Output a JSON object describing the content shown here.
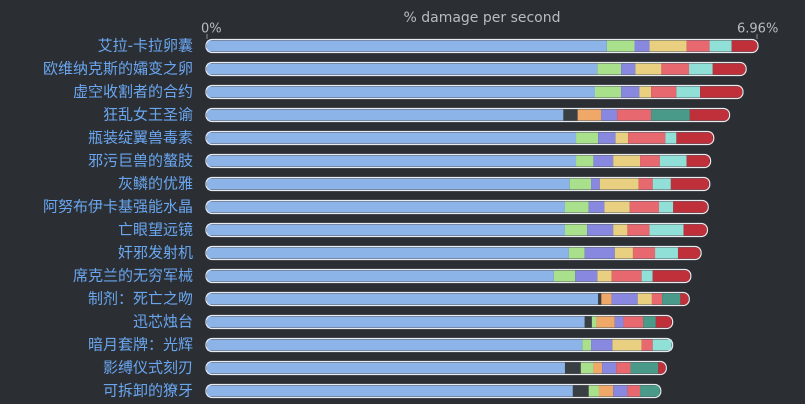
{
  "chart_data": {
    "type": "bar",
    "orientation": "horizontal",
    "stacked": true,
    "x_label": "% damage per second",
    "xlim": [
      0,
      6.96
    ],
    "xticks": [
      {
        "value": 0,
        "label": "0%"
      },
      {
        "value": 6.96,
        "label": "6.96%"
      }
    ],
    "categories": [
      "艾拉-卡拉卵囊",
      "欧维纳克斯的孀变之卵",
      "虚空收割者的合约",
      "狂乱女王圣谕",
      "瓶装绽翼兽毒素",
      "邪污巨兽的螯肢",
      "灰鳞的优雅",
      "阿努布伊卡基强能水晶",
      "亡眼望远镜",
      "奸邪发射机",
      "席克兰的无穷军械",
      "制剂：死亡之吻",
      "迅芯烛台",
      "暗月套牌：光辉",
      "影缚仪式刻刃",
      "可拆卸的獠牙"
    ],
    "series": [
      {
        "color": "#8cb4e8",
        "values": [
          5.06,
          4.94,
          4.91,
          4.51,
          4.67,
          4.67,
          4.59,
          4.53,
          4.53,
          4.58,
          4.39,
          4.95,
          4.78,
          4.75,
          4.53,
          4.63
        ]
      },
      {
        "color": "#3a3f44",
        "values": [
          null,
          null,
          null,
          0.18,
          null,
          null,
          null,
          null,
          null,
          null,
          null,
          0.04,
          0.09,
          null,
          0.2,
          0.2
        ]
      },
      {
        "color": "#a8e08c",
        "values": [
          0.35,
          0.3,
          0.33,
          null,
          0.28,
          0.22,
          0.27,
          0.3,
          0.28,
          0.2,
          0.27,
          null,
          0.06,
          0.11,
          0.16,
          0.13
        ]
      },
      {
        "color": "#f0a868",
        "values": [
          null,
          null,
          null,
          0.3,
          null,
          null,
          null,
          null,
          null,
          null,
          null,
          0.13,
          0.23,
          null,
          0.11,
          0.18
        ]
      },
      {
        "color": "#8888e0",
        "values": [
          0.19,
          0.18,
          0.23,
          0.2,
          0.22,
          0.25,
          0.11,
          0.2,
          0.33,
          0.38,
          0.28,
          0.33,
          0.11,
          0.27,
          0.18,
          0.18
        ]
      },
      {
        "color": "#e8d080",
        "values": [
          0.47,
          0.33,
          0.15,
          null,
          0.16,
          0.34,
          0.49,
          0.32,
          0.18,
          0.23,
          0.18,
          0.18,
          null,
          0.37,
          null,
          null
        ]
      },
      {
        "color": "#e86870",
        "values": [
          0.29,
          0.35,
          0.32,
          0.43,
          0.47,
          0.25,
          0.18,
          0.37,
          0.28,
          0.28,
          0.38,
          0.13,
          0.25,
          0.14,
          0.18,
          0.16
        ]
      },
      {
        "color": "#4a9a8a",
        "values": [
          null,
          null,
          null,
          0.49,
          null,
          null,
          null,
          null,
          null,
          null,
          null,
          0.23,
          0.16,
          null,
          0.35,
          0.25
        ]
      },
      {
        "color": "#90e0d8",
        "values": [
          0.28,
          0.3,
          0.3,
          null,
          0.14,
          0.34,
          0.23,
          0.18,
          0.43,
          0.29,
          0.14,
          null,
          null,
          0.24,
          null,
          null
        ]
      },
      {
        "color": "#c0303a",
        "values": [
          0.32,
          0.41,
          0.53,
          0.49,
          0.46,
          0.29,
          0.48,
          0.43,
          0.29,
          0.28,
          0.47,
          0.1,
          0.2,
          null,
          0.09,
          null
        ]
      }
    ]
  }
}
